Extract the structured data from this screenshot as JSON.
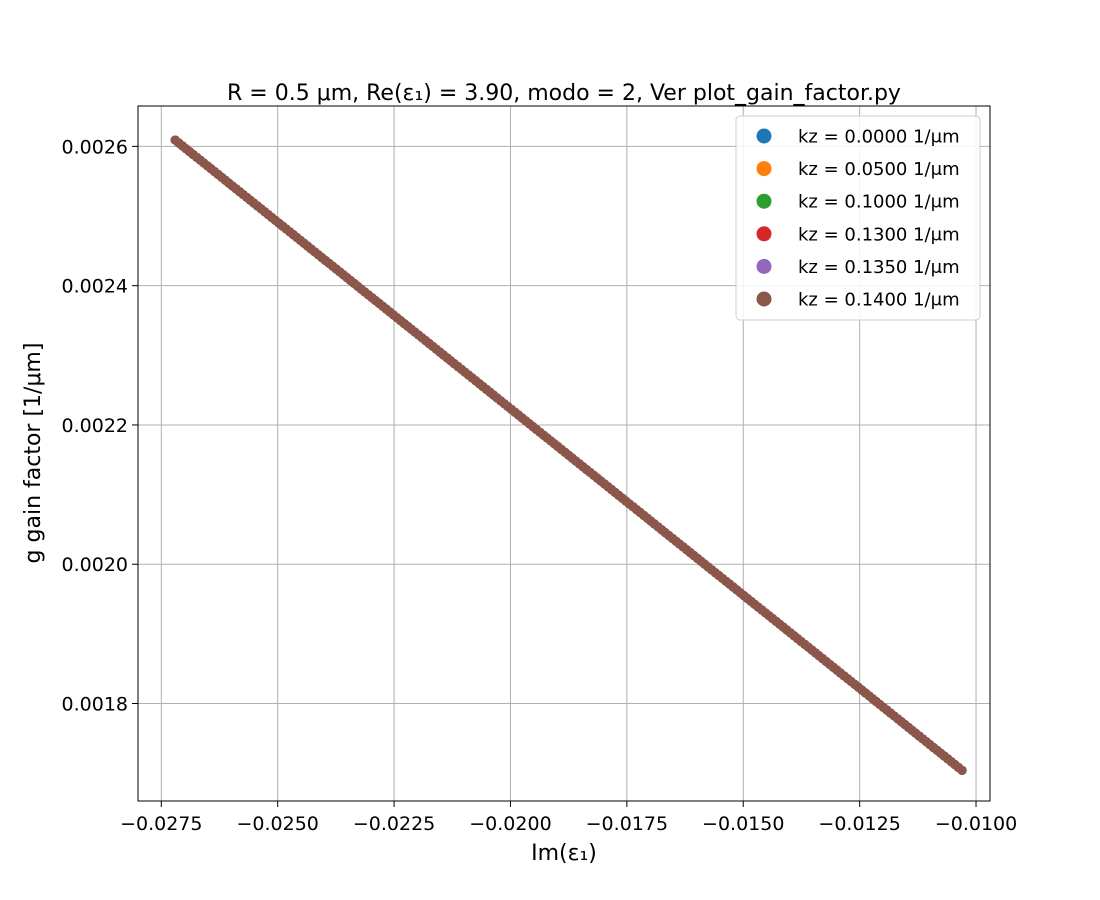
{
  "chart_data": {
    "type": "scatter",
    "title": "R = 0.5 μm, Re(ε₁) = 3.90, modo = 2, Ver plot_gain_factor.py",
    "xlabel": "Im(ε₁)",
    "ylabel": "g gain factor [1/μm]",
    "xlim": [
      -0.028,
      -0.0097
    ],
    "ylim": [
      0.00166,
      0.002658
    ],
    "xticks": [
      -0.0275,
      -0.025,
      -0.0225,
      -0.02,
      -0.0175,
      -0.015,
      -0.0125,
      -0.01
    ],
    "xtick_labels": [
      "−0.0275",
      "−0.0250",
      "−0.0225",
      "−0.0200",
      "−0.0175",
      "−0.0150",
      "−0.0125",
      "−0.0100"
    ],
    "yticks": [
      0.0018,
      0.002,
      0.0022,
      0.0024,
      0.0026
    ],
    "ytick_labels": [
      "0.0018",
      "0.0020",
      "0.0022",
      "0.0024",
      "0.0026"
    ],
    "grid": true,
    "legend_position": "top-right",
    "series": [
      {
        "name": "kz = 0.0000 1/μm",
        "color": "#1f77b4",
        "x_range": [
          -0.0272,
          -0.0103
        ],
        "y_range": [
          0.002609,
          0.001704
        ]
      },
      {
        "name": "kz = 0.0500 1/μm",
        "color": "#ff7f0e",
        "x_range": [
          -0.0272,
          -0.0103
        ],
        "y_range": [
          0.002609,
          0.001704
        ]
      },
      {
        "name": "kz = 0.1000 1/μm",
        "color": "#2ca02c",
        "x_range": [
          -0.0272,
          -0.0103
        ],
        "y_range": [
          0.002609,
          0.001704
        ]
      },
      {
        "name": "kz = 0.1300 1/μm",
        "color": "#d62728",
        "x_range": [
          -0.0272,
          -0.0103
        ],
        "y_range": [
          0.002609,
          0.001704
        ]
      },
      {
        "name": "kz = 0.1350 1/μm",
        "color": "#9467bd",
        "x_range": [
          -0.0272,
          -0.0103
        ],
        "y_range": [
          0.002609,
          0.001704
        ]
      },
      {
        "name": "kz = 0.1400 1/μm",
        "color": "#8c564b",
        "x_range": [
          -0.0272,
          -0.0103
        ],
        "y_range": [
          0.002609,
          0.001704
        ]
      }
    ]
  }
}
